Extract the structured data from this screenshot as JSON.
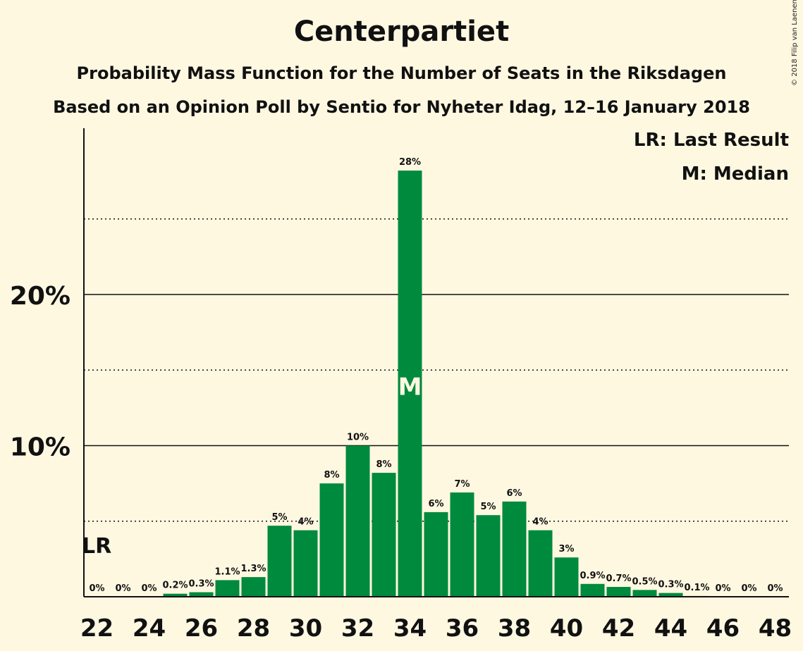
{
  "chart_data": {
    "type": "bar",
    "title": "Centerpartiet",
    "subtitle": "Probability Mass Function for the Number of Seats in the Riksdagen",
    "subtitle2": "Based on an Opinion Poll by Sentio for Nyheter Idag, 12–16 January 2018",
    "copyright": "© 2018 Filip van Laenen",
    "legend": {
      "lr": "LR: Last Result",
      "m": "M: Median"
    },
    "categories": [
      22,
      23,
      24,
      25,
      26,
      27,
      28,
      29,
      30,
      31,
      32,
      33,
      34,
      35,
      36,
      37,
      38,
      39,
      40,
      41,
      42,
      43,
      44,
      45,
      46,
      47,
      48
    ],
    "x_tick_labels": [
      "22",
      "24",
      "26",
      "28",
      "30",
      "32",
      "34",
      "36",
      "38",
      "40",
      "42",
      "44",
      "46",
      "48"
    ],
    "values": [
      0,
      0,
      0,
      0.2,
      0.3,
      1.1,
      1.3,
      4.7,
      4.4,
      7.5,
      10.0,
      8.2,
      28.2,
      5.6,
      6.9,
      5.4,
      6.3,
      4.4,
      2.6,
      0.85,
      0.65,
      0.45,
      0.25,
      0.05,
      0,
      0,
      0
    ],
    "data_labels": [
      "0%",
      "0%",
      "0%",
      "0.2%",
      "0.3%",
      "1.1%",
      "1.3%",
      "5%",
      "4%",
      "8%",
      "10%",
      "8%",
      "28%",
      "6%",
      "7%",
      "5%",
      "6%",
      "4%",
      "3%",
      "0.9%",
      "0.7%",
      "0.5%",
      "0.3%",
      "0.1%",
      "0%",
      "0%",
      "0%"
    ],
    "y_tick_labels": [
      "10%",
      "20%"
    ],
    "ylim": [
      0,
      31
    ],
    "grid": "solid lines at 10% steps, dotted lines at 5% steps",
    "median_seat": 34,
    "median_marker": "M",
    "last_result_seat": 22,
    "last_result_marker": "LR",
    "colors": {
      "bar": "#008a3e",
      "background": "#fff8e1",
      "text": "#111111"
    }
  }
}
